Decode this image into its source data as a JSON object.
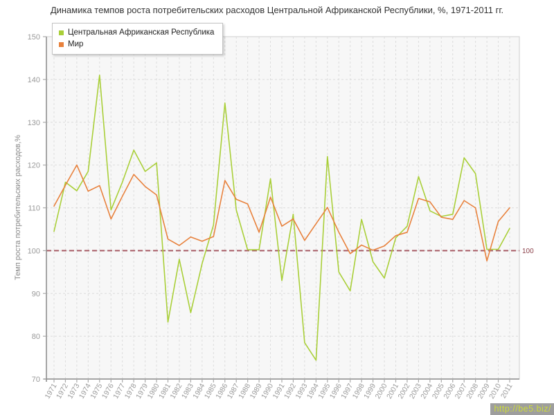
{
  "page": {
    "watermark": "http://be5.biz/"
  },
  "colors": {
    "background": "#ffffff",
    "plot_bg": "#f7f7f7",
    "plot_border": "#cccccc",
    "grid": "#dcdcdc",
    "axis": "#888888",
    "tick": "#aaaaaa",
    "tick_label": "#999999",
    "title": "#333333",
    "annotation": "#a85c66",
    "annotation_label": "#8b4049",
    "watermark_bg": "#9e9e9e",
    "watermark_text": "#cddc39"
  },
  "chart_data": {
    "type": "line",
    "title": "Динамика темпов роста потребительских расходов Центральной Африканской Республики, %, 1971-2011 гг.",
    "xlabel": "",
    "ylabel": "Темп роста потребительских расходов,%",
    "ylim": [
      70,
      150
    ],
    "yticks": [
      70,
      80,
      90,
      100,
      110,
      120,
      130,
      140,
      150
    ],
    "grid": true,
    "legend_position": "top-left",
    "categories": [
      1971,
      1972,
      1973,
      1974,
      1975,
      1976,
      1977,
      1978,
      1979,
      1980,
      1981,
      1982,
      1983,
      1984,
      1985,
      1986,
      1987,
      1988,
      1989,
      1990,
      1991,
      1992,
      1993,
      1994,
      1995,
      1996,
      1997,
      1998,
      1999,
      2000,
      2001,
      2002,
      2003,
      2004,
      2005,
      2006,
      2007,
      2008,
      2009,
      2010,
      2011
    ],
    "series": [
      {
        "name": "Центральная Африканская Республика",
        "color": "#a9cf38",
        "values": [
          104.5,
          116.0,
          114.0,
          118.5,
          141.0,
          109.5,
          116.0,
          123.5,
          118.5,
          120.5,
          83.3,
          98.0,
          85.5,
          97.0,
          106.0,
          134.5,
          109.5,
          100.2,
          100.2,
          116.8,
          93.0,
          108.5,
          78.5,
          74.4,
          122.0,
          95.0,
          90.6,
          107.3,
          97.4,
          93.6,
          103.0,
          105.7,
          117.3,
          109.3,
          108.0,
          108.5,
          121.7,
          118.0,
          100.3,
          100.3,
          105.2
        ]
      },
      {
        "name": "Мир",
        "color": "#e8813c",
        "values": [
          110.4,
          115.3,
          120.0,
          113.9,
          115.2,
          107.4,
          112.7,
          117.8,
          115.0,
          113.0,
          102.7,
          101.2,
          103.2,
          102.2,
          103.3,
          116.4,
          112.0,
          110.9,
          104.3,
          112.5,
          105.7,
          107.4,
          102.4,
          106.3,
          110.1,
          104.3,
          99.3,
          101.3,
          100.1,
          101.1,
          103.5,
          104.3,
          112.2,
          111.4,
          107.8,
          107.3,
          111.7,
          110.0,
          97.6,
          106.8,
          110.0
        ]
      }
    ],
    "annotation_line": {
      "value": 100,
      "label": "100"
    }
  }
}
